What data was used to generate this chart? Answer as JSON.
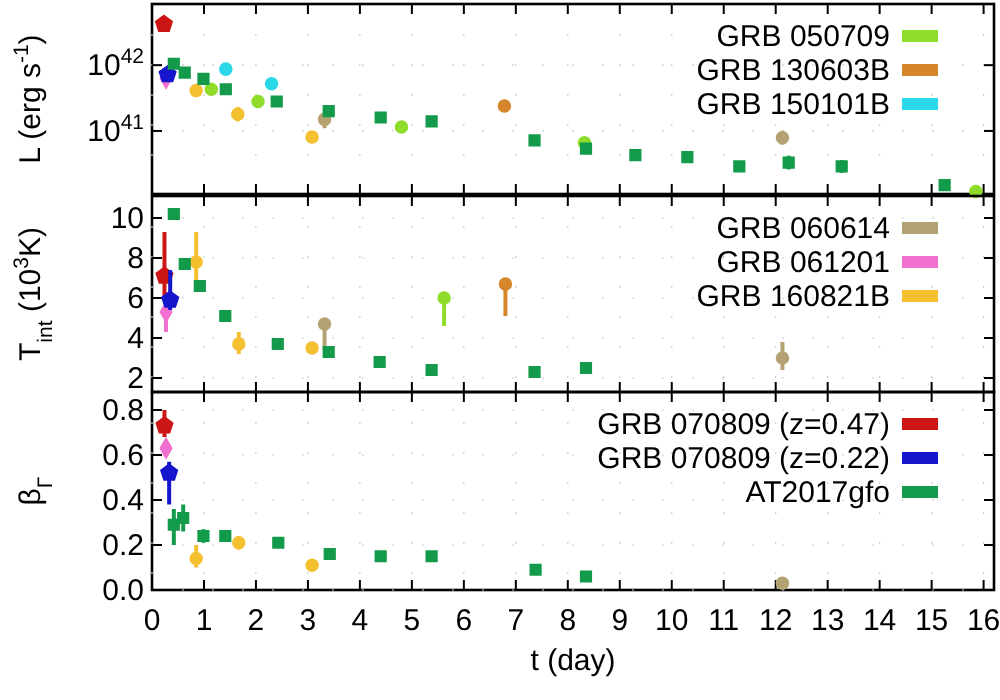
{
  "chart_data": [
    {
      "type": "scatter",
      "ylabel": "L (erg s$^{-1}$)",
      "log": true,
      "xlim": [
        0,
        16.2
      ],
      "xticks": [
        0,
        1,
        2,
        3,
        4,
        5,
        6,
        7,
        8,
        9,
        10,
        11,
        12,
        13,
        14,
        15,
        16
      ],
      "ylim": [
        1.1e+40,
        8.5e+42
      ],
      "yticks": [
        {
          "value": 1e+41,
          "label": "10$^{41}$"
        },
        {
          "value": 1e+42,
          "label": "10$^{42}$"
        }
      ],
      "tick_labels": "y",
      "grid": true,
      "legend": "top right",
      "series": [
        {
          "name": "GRB 050709",
          "color": "#8fdc2a",
          "marker": "circle",
          "x": [
            1.14,
            2.04,
            4.8,
            8.32,
            15.85
          ],
          "values": [
            4.3e+41,
            2.8e+41,
            1.15e+41,
            6.6e+40,
            1.2e+40
          ]
        },
        {
          "name": "GRB 130603B",
          "color": "#d5852a",
          "marker": "circle",
          "x": [
            6.78
          ],
          "values": [
            2.4e+41
          ]
        },
        {
          "name": "GRB 150101B",
          "color": "#2ad8e8",
          "marker": "circle",
          "x": [
            1.42,
            2.3
          ],
          "values": [
            8.7e+41,
            5.2e+41
          ]
        },
        {
          "color": "#b5a273",
          "marker": "circle",
          "x": [
            3.32,
            12.13
          ],
          "values": [
            1.5e+41,
            7.9e+40
          ],
          "errors": [
            [
              1.1e+41,
              1.9e+41
            ],
            [
              6.2e+40,
              1e+41
            ]
          ]
        },
        {
          "color": "#f070d0",
          "marker": "diamond",
          "x": [
            0.27
          ],
          "values": [
            6.3e+41
          ]
        },
        {
          "color": "#f5c030",
          "marker": "circle",
          "x": [
            0.85,
            1.65,
            3.08
          ],
          "values": [
            4.1e+41,
            1.8e+41,
            8.1e+40
          ],
          "errors": [
            null,
            [
              1.4e+41,
              2.3e+41
            ],
            null
          ]
        },
        {
          "color": "#cc1515",
          "x": [
            0.23
          ],
          "values": [
            4.2e+42
          ]
        },
        {
          "color": "#1515cc",
          "x": [
            0.3
          ],
          "values": [
            7.2e+41
          ]
        },
        {
          "color": "#139a4a",
          "marker": "square",
          "x": [
            0.42,
            0.63,
            0.99,
            1.42,
            2.4,
            3.4,
            4.4,
            5.38,
            7.36,
            8.35,
            9.3,
            10.3,
            11.3,
            12.25,
            13.27,
            15.25
          ],
          "values": [
            1.05e+42,
            7.7e+41,
            6.2e+41,
            4.3e+41,
            2.8e+41,
            2e+41,
            1.6e+41,
            1.4e+41,
            7.2e+40,
            5.4e+40,
            4.3e+40,
            4e+40,
            2.9e+40,
            3.3e+40,
            2.9e+40,
            1.5e+40
          ],
          "errors": [
            null,
            null,
            null,
            null,
            null,
            null,
            null,
            null,
            null,
            null,
            null,
            null,
            null,
            [
              2.6e+40,
              4.2e+40
            ],
            [
              2.3e+40,
              3.6e+40
            ],
            null
          ]
        }
      ]
    },
    {
      "type": "scatter",
      "ylabel": "T$_{int}$ (10$^{3}$K)",
      "xlim": [
        0,
        16.2
      ],
      "xticks": [
        0,
        1,
        2,
        3,
        4,
        5,
        6,
        7,
        8,
        9,
        10,
        11,
        12,
        13,
        14,
        15,
        16
      ],
      "ylim": [
        1.3,
        11.1
      ],
      "yticks": [
        2,
        4,
        6,
        8,
        10
      ],
      "tick_labels": "y",
      "grid": true,
      "legend": "top right",
      "series": [
        {
          "name": "GRB 060614",
          "color": "#b5a273",
          "marker": "circle",
          "x": [
            3.32,
            12.13
          ],
          "values": [
            4.7,
            3.0
          ],
          "errors": [
            [
              3.4,
              4.7
            ],
            [
              2.4,
              3.8
            ]
          ]
        },
        {
          "name": "GRB 061201",
          "color": "#f070d0",
          "marker": "diamond",
          "x": [
            0.27
          ],
          "values": [
            5.3
          ],
          "errors": [
            [
              4.3,
              6.3
            ]
          ]
        },
        {
          "name": "GRB 160821B",
          "color": "#f5c030",
          "marker": "circle",
          "x": [
            0.85,
            1.67,
            3.08
          ],
          "values": [
            7.8,
            3.7,
            3.5
          ],
          "errors": [
            [
              6.5,
              9.3
            ],
            [
              3.2,
              4.3
            ],
            null
          ]
        },
        {
          "color": "#8fdc2a",
          "marker": "circle",
          "x": [
            5.62
          ],
          "values": [
            6.0
          ],
          "errors": [
            [
              4.6,
              6.0
            ]
          ]
        },
        {
          "color": "#d5852a",
          "marker": "circle",
          "x": [
            6.8
          ],
          "values": [
            6.7
          ],
          "errors": [
            [
              5.1,
              6.7
            ]
          ]
        },
        {
          "color": "#cc1515",
          "x": [
            0.24
          ],
          "values": [
            7.1
          ],
          "errors": [
            [
              6.0,
              9.3
            ]
          ]
        },
        {
          "color": "#1515cc",
          "x": [
            0.35
          ],
          "values": [
            5.9
          ],
          "errors": [
            [
              5.4,
              7.4
            ]
          ]
        },
        {
          "color": "#139a4a",
          "marker": "square",
          "x": [
            0.42,
            0.63,
            0.92,
            1.41,
            2.42,
            3.4,
            4.38,
            5.38,
            7.36,
            8.35
          ],
          "values": [
            10.2,
            7.7,
            6.6,
            5.1,
            3.7,
            3.3,
            2.8,
            2.4,
            2.3,
            2.5
          ]
        }
      ]
    },
    {
      "type": "scatter",
      "ylabel": "β$_{Γ}$",
      "xlabel": "t (day)",
      "xlim": [
        0,
        16.2
      ],
      "xticks": [
        0,
        1,
        2,
        3,
        4,
        5,
        6,
        7,
        8,
        9,
        10,
        11,
        12,
        13,
        14,
        15,
        16
      ],
      "ylim": [
        0,
        0.88
      ],
      "yticks": [
        {
          "value": 0,
          "label": "0.0"
        },
        0.2,
        0.4,
        0.6,
        0.8
      ],
      "grid": true,
      "legend": "top right",
      "series": [
        {
          "name": "GRB 070809 (z=0.47)",
          "color": "#cc1515",
          "x": [
            0.24
          ],
          "values": [
            0.73
          ],
          "errors": [
            [
              0.68,
              0.8
            ]
          ]
        },
        {
          "name": "GRB 070809 (z=0.22)",
          "color": "#1515cc",
          "x": [
            0.33
          ],
          "values": [
            0.52
          ],
          "errors": [
            [
              0.38,
              0.57
            ]
          ]
        },
        {
          "name": "AT2017gfo",
          "color": "#139a4a",
          "marker": "square",
          "x": [
            0.42,
            0.6,
            0.99,
            1.41,
            2.43,
            3.42,
            4.4,
            5.38,
            7.38,
            8.35
          ],
          "values": [
            0.29,
            0.32,
            0.24,
            0.24,
            0.21,
            0.16,
            0.15,
            0.15,
            0.09,
            0.06
          ],
          "errors": [
            [
              0.2,
              0.36
            ],
            [
              0.26,
              0.38
            ],
            [
              0.21,
              0.27
            ],
            null,
            null,
            null,
            null,
            null,
            null,
            null
          ]
        },
        {
          "color": "#f070d0",
          "marker": "diamond",
          "x": [
            0.27
          ],
          "values": [
            0.63
          ]
        },
        {
          "color": "#f5c030",
          "marker": "circle",
          "x": [
            0.85,
            1.67,
            3.08
          ],
          "values": [
            0.14,
            0.21,
            0.11
          ],
          "errors": [
            [
              0.1,
              0.2
            ],
            [
              0.18,
              0.24
            ],
            null
          ]
        },
        {
          "color": "#b5a273",
          "marker": "circle",
          "x": [
            12.13
          ],
          "values": [
            0.03
          ]
        }
      ]
    }
  ]
}
